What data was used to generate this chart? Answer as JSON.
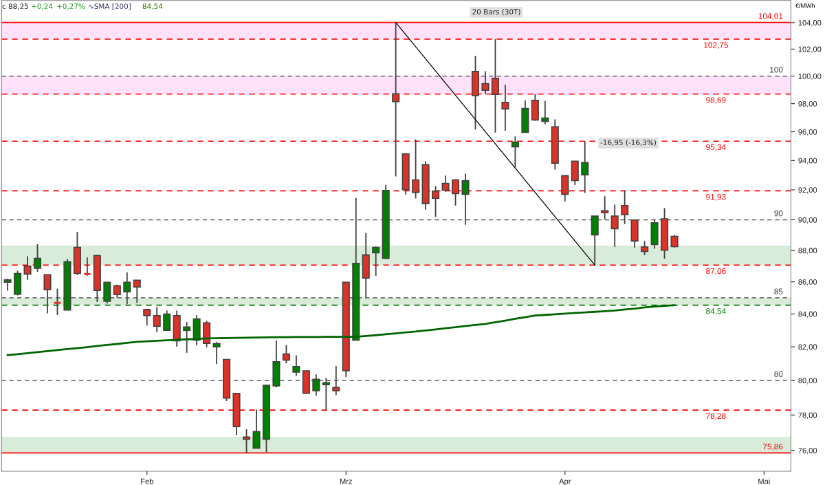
{
  "chart_data": {
    "type": "candlestick",
    "log": true,
    "ylabel": "€/MWh",
    "categories": [
      null,
      null,
      null,
      null,
      null,
      null,
      null,
      null,
      null,
      null,
      null,
      null,
      null,
      null,
      "Feb",
      null,
      null,
      null,
      null,
      null,
      null,
      null,
      null,
      null,
      null,
      null,
      null,
      null,
      null,
      null,
      null,
      null,
      null,
      null,
      "Mrz",
      null,
      null,
      null,
      null,
      null,
      null,
      null,
      null,
      null,
      null,
      null,
      null,
      null,
      null,
      null,
      null,
      null,
      null,
      null,
      null,
      null,
      "Apr",
      null,
      null,
      null,
      null,
      null,
      null,
      null,
      null,
      null,
      null,
      null,
      null,
      null,
      null,
      null,
      null,
      null,
      null,
      null,
      "Mai",
      null,
      null
    ],
    "ohlc": [
      [
        85.97,
        86.2,
        85.44,
        86.13
      ],
      [
        85.22,
        86.7,
        85.14,
        86.53
      ],
      [
        87.0,
        87.63,
        86.13,
        86.49
      ],
      [
        86.86,
        88.4,
        86.64,
        87.49
      ],
      [
        86.45,
        86.45,
        84.04,
        85.5
      ],
      [
        84.68,
        85.58,
        83.93,
        84.68
      ],
      [
        84.24,
        87.45,
        84.24,
        87.27
      ],
      [
        88.2,
        89.2,
        86.43,
        86.53
      ],
      [
        86.5,
        87.55,
        86.39,
        86.5
      ],
      [
        87.67,
        87.73,
        84.74,
        85.46
      ],
      [
        84.78,
        85.97,
        84.64,
        85.97
      ],
      [
        85.76,
        85.82,
        85.01,
        85.2
      ],
      [
        85.37,
        86.59,
        84.6,
        85.97
      ],
      [
        86.1,
        86.1,
        84.68,
        85.67
      ],
      [
        84.28,
        84.28,
        83.29,
        83.9
      ],
      [
        83.9,
        84.42,
        82.89,
        83.24
      ],
      [
        82.99,
        84.21,
        82.99,
        83.99
      ],
      [
        83.9,
        84.21,
        82.01,
        82.36
      ],
      [
        82.99,
        83.5,
        81.64,
        83.2
      ],
      [
        82.4,
        83.92,
        82.1,
        83.7
      ],
      [
        83.45,
        83.58,
        81.97,
        82.2
      ],
      [
        81.99,
        82.28,
        80.97,
        82.2
      ],
      [
        81.24,
        81.24,
        78.8,
        78.97
      ],
      [
        79.25,
        79.25,
        76.85,
        77.34
      ],
      [
        76.75,
        77.19,
        75.86,
        76.63
      ],
      [
        76.13,
        78.32,
        76.13,
        77.06
      ],
      [
        76.63,
        79.75,
        75.9,
        79.72
      ],
      [
        79.68,
        82.38,
        79.6,
        81.11
      ],
      [
        81.57,
        82.11,
        81.01,
        81.2
      ],
      [
        80.49,
        81.49,
        80.28,
        80.82
      ],
      [
        80.57,
        80.57,
        79.21,
        79.25
      ],
      [
        79.4,
        80.36,
        79.11,
        80.07
      ],
      [
        79.75,
        80.15,
        78.28,
        79.87
      ],
      [
        79.6,
        80.86,
        79.15,
        79.4
      ],
      [
        85.97,
        85.97,
        80.2,
        80.57
      ],
      [
        82.4,
        91.45,
        82.4,
        87.18
      ],
      [
        87.71,
        89.14,
        84.99,
        86.24
      ],
      [
        87.85,
        88.25,
        86.37,
        88.2
      ],
      [
        87.49,
        92.34,
        87.45,
        91.96
      ],
      [
        98.72,
        104.01,
        92.91,
        98.14
      ],
      [
        94.47,
        94.47,
        91.68,
        92.01
      ],
      [
        92.67,
        95.47,
        91.42,
        91.83
      ],
      [
        93.72,
        93.95,
        90.67,
        91.08
      ],
      [
        91.92,
        92.25,
        90.19,
        91.43
      ],
      [
        92.44,
        92.96,
        91.87,
        91.97
      ],
      [
        92.67,
        92.72,
        90.95,
        91.74
      ],
      [
        91.7,
        93.1,
        89.67,
        92.62
      ],
      [
        100.35,
        101.49,
        96.16,
        98.58
      ],
      [
        99.45,
        100.36,
        98.67,
        98.97
      ],
      [
        99.84,
        102.75,
        95.94,
        98.67
      ],
      [
        98.09,
        99.37,
        96.08,
        97.61
      ],
      [
        94.95,
        95.68,
        93.53,
        95.28
      ],
      [
        95.96,
        98.24,
        95.96,
        97.66
      ],
      [
        98.24,
        98.69,
        96.78,
        96.83
      ],
      [
        96.73,
        98.19,
        96.54,
        96.98
      ],
      [
        96.35,
        96.88,
        93.38,
        93.81
      ],
      [
        92.96,
        92.96,
        91.22,
        91.7
      ],
      [
        93.95,
        93.95,
        92.32,
        92.63
      ],
      [
        93.01,
        95.34,
        91.79,
        93.86
      ],
      [
        89.01,
        90.25,
        87.06,
        90.25
      ],
      [
        90.6,
        91.57,
        90.03,
        90.47
      ],
      [
        90.25,
        91.0,
        88.23,
        89.41
      ],
      [
        90.95,
        91.93,
        89.72,
        90.34
      ],
      [
        89.99,
        89.99,
        88.19,
        88.61
      ],
      [
        88.23,
        88.61,
        87.7,
        87.94
      ],
      [
        88.38,
        89.99,
        88.12,
        89.81
      ],
      [
        90.07,
        90.78,
        87.47,
        88.01
      ],
      [
        88.92,
        89.01,
        88.19,
        88.25
      ],
      null,
      null,
      null,
      null,
      null,
      null,
      null,
      null,
      null,
      null,
      null
    ],
    "colors": [
      "#008000",
      "#008000",
      "#dc3328",
      "#008000",
      "#dc3328",
      "#dc3328",
      "#008000",
      "#dc3328",
      "#dc3328",
      "#dc3328",
      "#008000",
      "#dc3328",
      "#008000",
      "#dc3328",
      "#dc3328",
      "#dc3328",
      "#008000",
      "#dc3328",
      "#008000",
      "#008000",
      "#dc3328",
      "#008000",
      "#dc3328",
      "#dc3328",
      "#dc3328",
      "#008000",
      "#008000",
      "#008000",
      "#dc3328",
      "#008000",
      "#dc3328",
      "#008000",
      "#008000",
      "#dc3328",
      "#dc3328",
      "#008000",
      "#dc3328",
      "#008000",
      "#008000",
      "#dc3328",
      "#dc3328",
      "#dc3328",
      "#dc3328",
      "#dc3328",
      "#dc3328",
      "#dc3328",
      "#008000",
      "#dc3328",
      "#dc3328",
      "#dc3328",
      "#dc3328",
      "#008000",
      "#008000",
      "#dc3328",
      "#008000",
      "#dc3328",
      "#dc3328",
      "#dc3328",
      "#008000",
      "#008000",
      "#dc3328",
      "#dc3328",
      "#dc3328",
      "#dc3328",
      "#dc3328",
      "#008000",
      "#dc3328",
      "#dc3328",
      null,
      null,
      null,
      null,
      null,
      null,
      null,
      null,
      null,
      null,
      null
    ],
    "series": [
      {
        "type": "line",
        "color": "#006400",
        "values": [
          81.5,
          81.56,
          81.62,
          81.68,
          81.74,
          81.8,
          81.86,
          81.92,
          81.98,
          82.05,
          82.11,
          82.17,
          82.24,
          82.3,
          82.33,
          82.36,
          82.39,
          82.42,
          82.45,
          82.48,
          82.51,
          82.52,
          82.53,
          82.54,
          82.55,
          82.56,
          82.57,
          82.58,
          82.58,
          82.59,
          82.59,
          82.59,
          82.6,
          82.6,
          82.6,
          82.6,
          82.65,
          82.7,
          82.76,
          82.81,
          82.87,
          82.92,
          82.99,
          83.05,
          83.12,
          83.19,
          83.26,
          83.32,
          83.39,
          83.49,
          83.59,
          83.7,
          83.8,
          83.9,
          83.94,
          83.98,
          84.02,
          84.06,
          84.09,
          84.13,
          84.17,
          84.21,
          84.27,
          84.33,
          84.4,
          84.46,
          84.5,
          84.54,
          null,
          null,
          null,
          null,
          null,
          null,
          null,
          null,
          null,
          null,
          null
        ]
      },
      {
        "type": "line",
        "color": "#000000",
        "values": [
          null,
          null,
          null,
          null,
          null,
          null,
          null,
          null,
          null,
          null,
          null,
          null,
          null,
          null,
          null,
          null,
          null,
          null,
          null,
          null,
          null,
          null,
          null,
          null,
          null,
          null,
          null,
          null,
          null,
          null,
          null,
          null,
          null,
          null,
          null,
          null,
          null,
          null,
          null,
          104.01,
          null,
          null,
          null,
          null,
          null,
          null,
          null,
          null,
          null,
          null,
          null,
          null,
          null,
          null,
          null,
          null,
          null,
          null,
          null,
          87.06,
          null,
          null,
          null,
          null,
          null,
          null,
          null,
          null,
          null,
          null,
          null,
          null,
          null,
          null,
          null,
          null,
          null,
          null,
          null
        ]
      }
    ],
    "bands": [
      {
        "axis": "y",
        "from": 102.75,
        "to": 104.01,
        "color": "#ffe1fa"
      },
      {
        "axis": "y",
        "from": 98.69,
        "to": 100,
        "color": "#ffe1fa"
      },
      {
        "axis": "y",
        "from": 87.06,
        "to": 88.31,
        "color": "#d9ebd9"
      },
      {
        "axis": "y",
        "from": 84.54,
        "to": 85,
        "color": "#d9ebd9"
      },
      {
        "axis": "y",
        "from": 75.86,
        "to": 76.76,
        "color": "#d9ebd9"
      }
    ],
    "ref_lines": [
      {
        "axis": "y",
        "value": 104.01,
        "label": "104,01",
        "color": "#ff0000",
        "line_style": "solid"
      },
      {
        "axis": "y",
        "value": 102.75,
        "label": "102,75",
        "color": "#ff0000",
        "line_style": "dashed"
      },
      {
        "axis": "y",
        "value": 100,
        "label": "100",
        "color": "#404040",
        "line_style": "dashed"
      },
      {
        "axis": "y",
        "value": 98.69,
        "label": "98,69",
        "color": "#ff0000",
        "line_style": "dashed"
      },
      {
        "axis": "y",
        "value": 95.34,
        "label": "95,34",
        "color": "#ff0000",
        "line_style": "dashed"
      },
      {
        "axis": "y",
        "value": 91.93,
        "label": "91,93",
        "color": "#ff0000",
        "line_style": "dashed"
      },
      {
        "axis": "y",
        "value": 90,
        "label": "90",
        "color": "#404040",
        "line_style": "dashed"
      },
      {
        "axis": "y",
        "value": 87.06,
        "label": "87,06",
        "color": "#ff0000",
        "line_style": "dashed"
      },
      {
        "axis": "y",
        "value": 85,
        "label": "85",
        "color": "#404040",
        "line_style": "dashed"
      },
      {
        "axis": "y",
        "value": 84.54,
        "label": "84,54",
        "color": "#008000",
        "line_style": "dashed"
      },
      {
        "axis": "y",
        "value": 80,
        "label": "80",
        "color": "#404040",
        "line_style": "dashed"
      },
      {
        "axis": "y",
        "value": 78.28,
        "label": "78,28",
        "color": "#ff0000",
        "line_style": "dashed"
      },
      {
        "axis": "y",
        "value": 75.86,
        "label": "75,86",
        "color": "#ff0000",
        "line_style": "solid"
      }
    ],
    "ylim": [
      74.85,
      105.7
    ],
    "yticks": [
      {
        "value": 76,
        "label": "76,00"
      },
      {
        "value": 78,
        "label": "78,00"
      },
      {
        "value": 80,
        "label": "80,00"
      },
      {
        "value": 82,
        "label": "82,00"
      },
      {
        "value": 84,
        "label": "84,00"
      },
      {
        "value": 86,
        "label": "86,00"
      },
      {
        "value": 88,
        "label": "88,00"
      },
      {
        "value": 90,
        "label": "90,00"
      },
      {
        "value": 92,
        "label": "92,00"
      },
      {
        "value": 94,
        "label": "94,00"
      },
      {
        "value": 96,
        "label": "96,00"
      },
      {
        "value": 98,
        "label": "98,00"
      },
      {
        "value": 100,
        "label": "100,00"
      },
      {
        "value": 102,
        "label": "102,00"
      },
      {
        "value": 104,
        "label": "104,00"
      }
    ],
    "annotations": [
      "c 88,25",
      "+0,24",
      "+0,27%",
      "∿SMA [200]",
      "84,54",
      "20 Bars (30T)",
      "-16,95 (-16,3%)"
    ]
  }
}
